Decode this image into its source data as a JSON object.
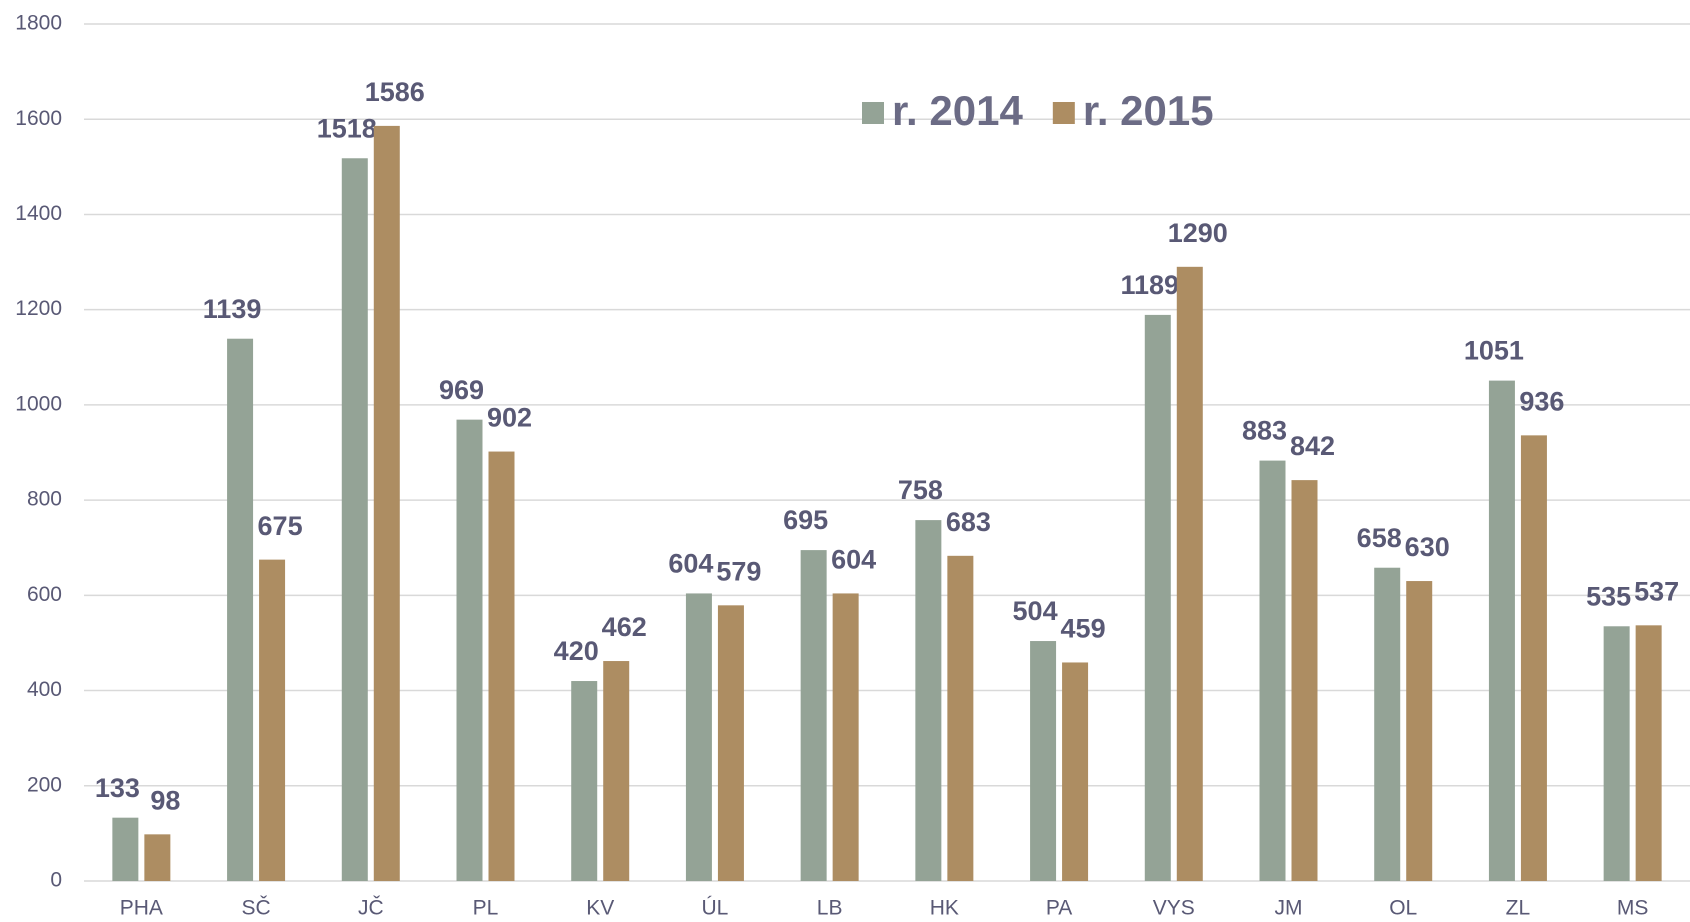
{
  "chart_data": {
    "type": "bar",
    "categories": [
      "PHA",
      "SČ",
      "JČ",
      "PL",
      "KV",
      "ÚL",
      "LB",
      "HK",
      "PA",
      "VYS",
      "JM",
      "OL",
      "ZL",
      "MS"
    ],
    "series": [
      {
        "name": "r. 2014",
        "color": "#94a396",
        "values": [
          133,
          1139,
          1518,
          969,
          420,
          604,
          695,
          758,
          504,
          1189,
          883,
          658,
          1051,
          535
        ]
      },
      {
        "name": "r. 2015",
        "color": "#ad8d62",
        "values": [
          98,
          675,
          1586,
          902,
          462,
          579,
          604,
          683,
          459,
          1290,
          842,
          630,
          936,
          537
        ]
      }
    ],
    "ylim": [
      0,
      1800
    ],
    "yticks": [
      0,
      200,
      400,
      600,
      800,
      1000,
      1200,
      1400,
      1600,
      1800
    ],
    "grid": true,
    "legend": "top"
  }
}
